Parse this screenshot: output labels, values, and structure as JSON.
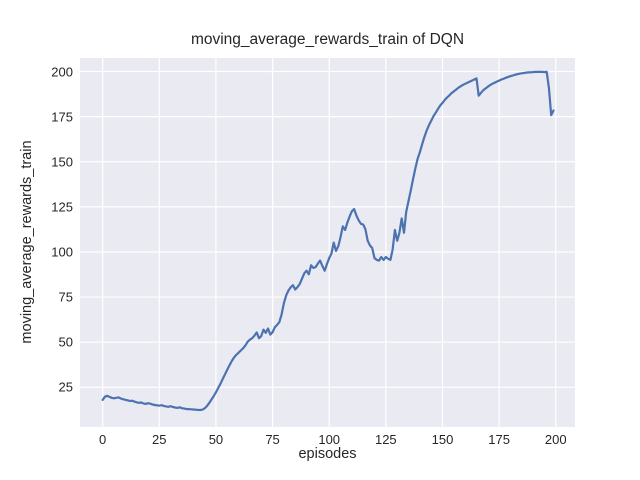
{
  "figure": {
    "background": "#ffffff"
  },
  "chart_data": {
    "type": "line",
    "title": "moving_average_rewards_train of DQN",
    "xlabel": "episodes",
    "ylabel": "moving_average_rewards_train",
    "x_ticks": [
      0,
      25,
      50,
      75,
      100,
      125,
      150,
      175,
      200
    ],
    "y_ticks": [
      25,
      50,
      75,
      100,
      125,
      150,
      175,
      200
    ],
    "xlim": [
      -10,
      208.5
    ],
    "ylim": [
      3,
      207.5
    ],
    "grid": true,
    "legend": "none",
    "axes_background": "#eaeaf2",
    "grid_color": "#ffffff",
    "series": [
      {
        "name": "DQN moving_average_rewards_train",
        "color": "#4c72b0",
        "line_width": 2.2,
        "x_is_episode_index": true,
        "values": [
          18.0,
          19.8,
          20.3,
          19.7,
          19.2,
          18.9,
          19.2,
          19.4,
          18.8,
          18.4,
          18.1,
          17.8,
          17.4,
          17.6,
          17.1,
          16.7,
          16.4,
          16.6,
          16.1,
          15.8,
          16.2,
          15.9,
          15.5,
          15.2,
          15.0,
          14.8,
          15.1,
          14.7,
          14.4,
          14.2,
          14.5,
          14.1,
          13.8,
          13.6,
          13.9,
          13.4,
          13.2,
          13.0,
          12.9,
          12.8,
          12.7,
          12.6,
          12.5,
          12.4,
          12.6,
          13.3,
          14.6,
          16.2,
          18.2,
          20.1,
          22.2,
          24.6,
          27.0,
          29.6,
          32.2,
          34.8,
          37.2,
          39.6,
          41.6,
          43.0,
          44.2,
          45.4,
          46.6,
          48.2,
          50.2,
          51.4,
          52.2,
          53.6,
          55.4,
          52.2,
          53.4,
          57.0,
          55.2,
          57.6,
          54.2,
          55.6,
          58.2,
          59.6,
          61.2,
          65.4,
          71.6,
          76.0,
          78.6,
          80.4,
          81.6,
          79.2,
          80.6,
          82.2,
          85.2,
          88.2,
          89.6,
          87.6,
          92.6,
          91.2,
          91.6,
          93.6,
          95.2,
          92.2,
          89.6,
          93.2,
          96.6,
          99.2,
          105.2,
          100.6,
          103.2,
          108.2,
          114.2,
          112.2,
          116.2,
          119.6,
          122.6,
          123.8,
          120.2,
          117.6,
          115.6,
          115.2,
          112.6,
          106.2,
          103.6,
          102.2,
          96.6,
          95.6,
          95.2,
          97.2,
          95.6,
          97.2,
          96.2,
          95.6,
          101.2,
          112.2,
          106.2,
          110.6,
          118.6,
          110.6,
          122.2,
          128.2,
          134.2,
          140.2,
          146.2,
          151.6,
          155.2,
          159.6,
          163.6,
          167.2,
          170.2,
          172.6,
          175.2,
          177.2,
          179.2,
          181.2,
          182.6,
          184.2,
          185.6,
          186.8,
          188.0,
          189.0,
          190.0,
          191.0,
          191.8,
          192.6,
          193.2,
          193.8,
          194.4,
          195.0,
          195.6,
          196.2,
          186.6,
          188.2,
          189.6,
          190.6,
          191.6,
          192.4,
          193.2,
          193.8,
          194.4,
          195.0,
          195.6,
          196.0,
          196.5,
          197.0,
          197.4,
          197.8,
          198.2,
          198.5,
          198.8,
          199.0,
          199.2,
          199.4,
          199.5,
          199.6,
          199.7,
          199.8,
          199.8,
          199.8,
          199.8,
          199.7,
          199.8,
          191.0,
          175.8,
          178.4
        ]
      }
    ]
  }
}
